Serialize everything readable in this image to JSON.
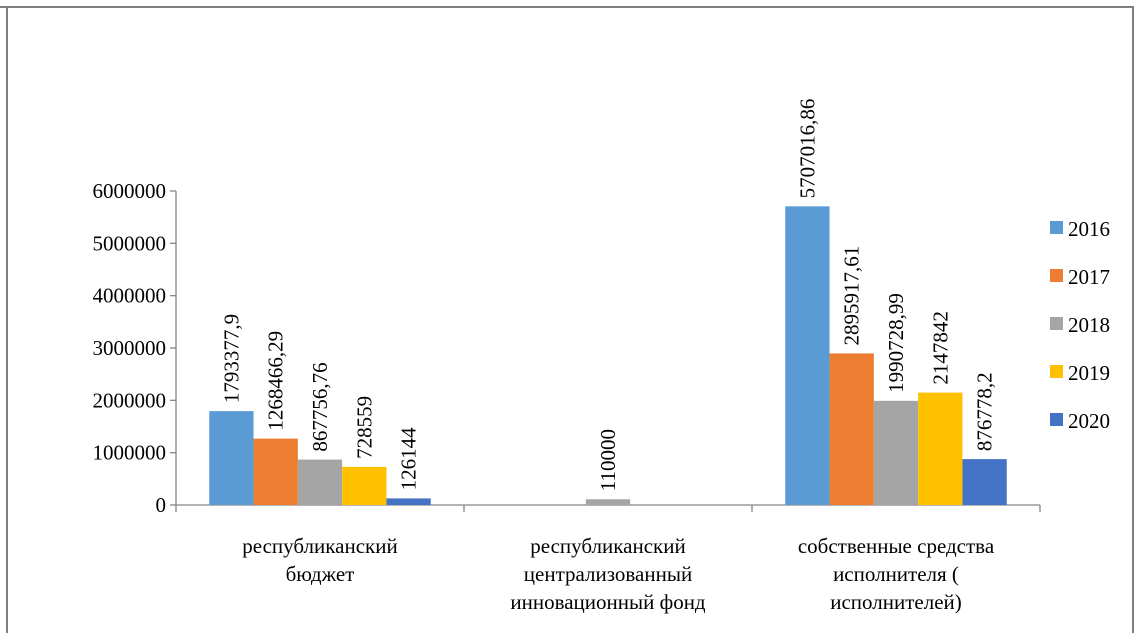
{
  "chart_data": {
    "type": "bar",
    "title": "",
    "xlabel": "",
    "ylabel": "",
    "ylim": [
      0,
      6000000
    ],
    "yticks": [
      0,
      1000000,
      2000000,
      3000000,
      4000000,
      5000000,
      6000000
    ],
    "grid": false,
    "legend_position": "right",
    "categories": [
      [
        "республиканский",
        "бюджет"
      ],
      [
        "республиканский",
        "централизованный",
        "инновационный фонд"
      ],
      [
        "собственные средства",
        "исполнителя (",
        "исполнителей)"
      ]
    ],
    "series": [
      {
        "name": "2016",
        "color": "#5b9bd5",
        "values": [
          1793377.9,
          null,
          5707016.86
        ],
        "labels": [
          "1793377,9",
          "",
          "5707016,86"
        ]
      },
      {
        "name": "2017",
        "color": "#ed7d31",
        "values": [
          1268466.29,
          null,
          2895917.61
        ],
        "labels": [
          "1268466,29",
          "",
          "2895917,61"
        ]
      },
      {
        "name": "2018",
        "color": "#a5a5a5",
        "values": [
          867756.76,
          110000,
          1990728.99
        ],
        "labels": [
          "867756,76",
          "110000",
          "1990728,99"
        ]
      },
      {
        "name": "2019",
        "color": "#ffc000",
        "values": [
          728559,
          null,
          2147842
        ],
        "labels": [
          "728559",
          "",
          "2147842"
        ]
      },
      {
        "name": "2020",
        "color": "#4472c4",
        "values": [
          126144,
          null,
          876778.2
        ],
        "labels": [
          "126144",
          "",
          "876778,2"
        ]
      }
    ]
  }
}
